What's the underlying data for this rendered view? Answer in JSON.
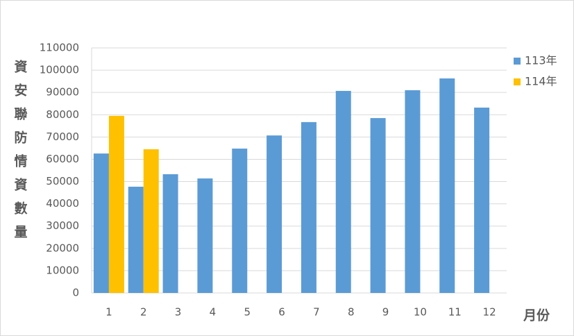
{
  "chart_data": {
    "type": "bar",
    "y_label": "資安聯防情資數量",
    "x_label": "月份",
    "categories": [
      "1",
      "2",
      "3",
      "4",
      "5",
      "6",
      "7",
      "8",
      "9",
      "10",
      "11",
      "12"
    ],
    "series": [
      {
        "name": "113年",
        "color": "#5b9bd5",
        "values": [
          62600,
          47700,
          53300,
          51400,
          64800,
          70700,
          76700,
          90700,
          78500,
          91000,
          96300,
          83200
        ]
      },
      {
        "name": "114年",
        "color": "#ffc000",
        "values": [
          79500,
          64500,
          null,
          null,
          null,
          null,
          null,
          null,
          null,
          null,
          null,
          null
        ]
      }
    ],
    "ylim": [
      0,
      110000
    ],
    "yticks": [
      0,
      10000,
      20000,
      30000,
      40000,
      50000,
      60000,
      70000,
      80000,
      90000,
      100000,
      110000
    ],
    "grid": true,
    "legend": "right"
  }
}
